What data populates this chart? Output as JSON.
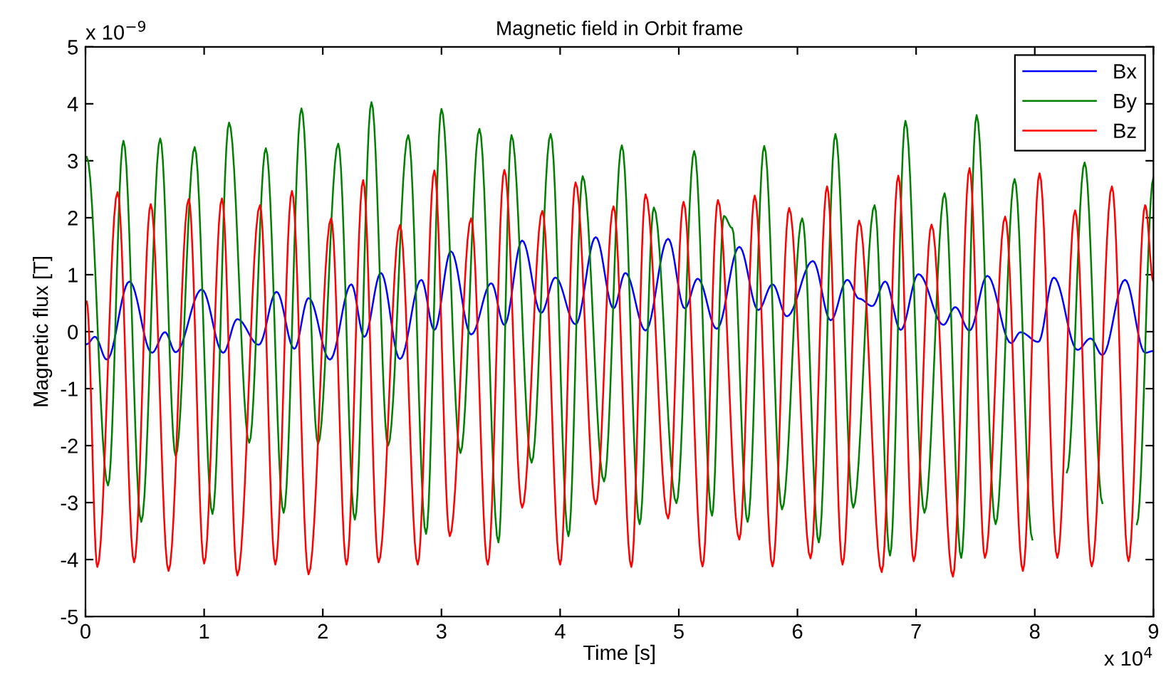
{
  "chart_data": {
    "type": "line",
    "title": "Magnetic field in Orbit frame",
    "xlabel": "Time [s]",
    "ylabel": "Magnetic flux [T]",
    "annotations": [
      "x 10$^{−9}$",
      "x 10$^{4}$"
    ],
    "xlim": [
      0,
      9
    ],
    "xticks": [
      0,
      1,
      2,
      3,
      4,
      5,
      6,
      7,
      8,
      9
    ],
    "ylim": [
      -5,
      5
    ],
    "yticks": [
      -5,
      -4,
      -3,
      -2,
      -1,
      0,
      1,
      2,
      3,
      4,
      5
    ],
    "grid": false,
    "legend": "top right",
    "marker": "none",
    "line_style": "solid",
    "series": [
      {
        "name": "Bx",
        "color": "#0000ff",
        "x": [
          0.01,
          0.08,
          0.18,
          0.37,
          0.56,
          0.67,
          0.76,
          0.98,
          1.16,
          1.28,
          1.46,
          1.61,
          1.76,
          1.88,
          2.06,
          2.24,
          2.35,
          2.49,
          2.65,
          2.83,
          2.94,
          3.08,
          3.25,
          3.42,
          3.53,
          3.68,
          3.84,
          3.96,
          4.13,
          4.3,
          4.45,
          4.55,
          4.72,
          4.91,
          5.05,
          5.16,
          5.32,
          5.51,
          5.67,
          5.79,
          5.91,
          6.13,
          6.28,
          6.42,
          6.52,
          6.63,
          6.74,
          6.87,
          7.02,
          7.23,
          7.33,
          7.45,
          7.6,
          7.8,
          7.88,
          8.03,
          8.16,
          8.36,
          8.47,
          8.57,
          8.76,
          8.93,
          9.0
        ],
        "values": [
          -0.22,
          -0.09,
          -0.49,
          0.88,
          -0.37,
          -0.01,
          -0.36,
          0.74,
          -0.37,
          0.22,
          -0.23,
          0.7,
          -0.3,
          0.59,
          -0.49,
          0.83,
          -0.09,
          1.03,
          -0.48,
          0.91,
          0.03,
          1.41,
          -0.05,
          0.85,
          0.12,
          1.6,
          0.33,
          0.95,
          0.13,
          1.66,
          0.41,
          1.03,
          0.02,
          1.63,
          0.41,
          0.93,
          0.05,
          1.49,
          0.38,
          0.83,
          0.27,
          1.24,
          0.2,
          0.91,
          0.58,
          0.45,
          0.88,
          0.03,
          1.01,
          0.12,
          0.43,
          0.02,
          0.98,
          -0.2,
          -0.01,
          -0.18,
          0.95,
          -0.32,
          -0.12,
          -0.41,
          0.91,
          -0.37,
          -0.34
        ]
      },
      {
        "name": "By",
        "color": "#008000",
        "x": [
          0.01,
          0.19,
          0.32,
          0.47,
          0.63,
          0.76,
          0.92,
          1.07,
          1.21,
          1.38,
          1.52,
          1.67,
          1.82,
          1.96,
          2.13,
          2.27,
          2.41,
          2.55,
          2.72,
          2.87,
          3.0,
          3.16,
          3.32,
          3.48,
          3.59,
          3.76,
          3.92,
          4.07,
          4.19,
          4.37,
          4.52,
          4.67,
          4.79,
          4.98,
          5.13,
          5.28,
          5.38,
          5.45,
          5.58,
          5.72,
          5.87,
          6.04,
          6.18,
          6.32,
          6.47,
          6.65,
          6.78,
          6.91,
          7.07,
          7.24,
          7.38,
          7.51,
          7.67,
          7.83,
          7.98,
          8.13,
          8.27,
          8.42,
          8.57,
          8.72,
          8.86,
          9.0
        ],
        "values": [
          3.07,
          -2.7,
          3.35,
          -3.34,
          3.39,
          -2.18,
          3.24,
          -3.2,
          3.67,
          -1.95,
          3.22,
          -3.18,
          3.92,
          -1.97,
          3.3,
          -3.3,
          4.03,
          -2.0,
          3.45,
          -3.55,
          3.91,
          -2.13,
          3.56,
          -3.7,
          3.45,
          -2.3,
          3.47,
          -3.59,
          2.73,
          -2.63,
          3.27,
          -3.38,
          2.18,
          -3.01,
          3.17,
          -3.23,
          2.03,
          1.82,
          -3.34,
          3.26,
          -3.12,
          1.99,
          -3.7,
          3.47,
          -3.09,
          2.22,
          -3.93,
          3.7,
          -3.18,
          2.43,
          -3.97,
          3.8,
          -3.38,
          2.68,
          -3.65,
          null,
          -2.47,
          2.97,
          -3.01,
          null,
          -3.38,
          2.7
        ]
      },
      {
        "name": "Bz",
        "color": "#ff0000",
        "x": [
          0.01,
          0.1,
          0.27,
          0.41,
          0.55,
          0.7,
          0.87,
          1.0,
          1.15,
          1.28,
          1.47,
          1.6,
          1.74,
          1.88,
          2.07,
          2.2,
          2.34,
          2.47,
          2.65,
          2.8,
          2.94,
          3.07,
          3.25,
          3.39,
          3.53,
          3.68,
          3.85,
          4.0,
          4.13,
          4.3,
          4.45,
          4.6,
          4.72,
          4.91,
          5.04,
          5.2,
          5.33,
          5.51,
          5.64,
          5.79,
          5.93,
          6.11,
          6.25,
          6.38,
          6.52,
          6.71,
          6.85,
          6.98,
          7.13,
          7.31,
          7.45,
          7.58,
          7.75,
          7.9,
          8.04,
          8.19,
          8.34,
          8.48,
          8.65,
          8.79,
          8.93,
          9.0
        ],
        "values": [
          0.53,
          -4.13,
          2.45,
          -4.05,
          2.24,
          -4.2,
          2.33,
          -4.07,
          2.34,
          -4.28,
          2.22,
          -4.09,
          2.47,
          -4.26,
          1.99,
          -4.09,
          2.66,
          -4.05,
          1.87,
          -4.09,
          2.83,
          -3.59,
          1.99,
          -4.09,
          2.84,
          -3.09,
          2.12,
          -4.09,
          2.62,
          -3.03,
          2.2,
          -4.13,
          2.41,
          -3.28,
          2.28,
          -4.12,
          2.31,
          -3.65,
          2.39,
          -4.12,
          2.17,
          -3.98,
          2.55,
          -4.09,
          1.95,
          -4.22,
          2.74,
          -4.03,
          1.88,
          -4.3,
          2.87,
          -3.97,
          2.02,
          -4.2,
          2.78,
          -3.97,
          2.13,
          -4.12,
          2.55,
          -4.03,
          2.22,
          0.88
        ]
      }
    ]
  }
}
